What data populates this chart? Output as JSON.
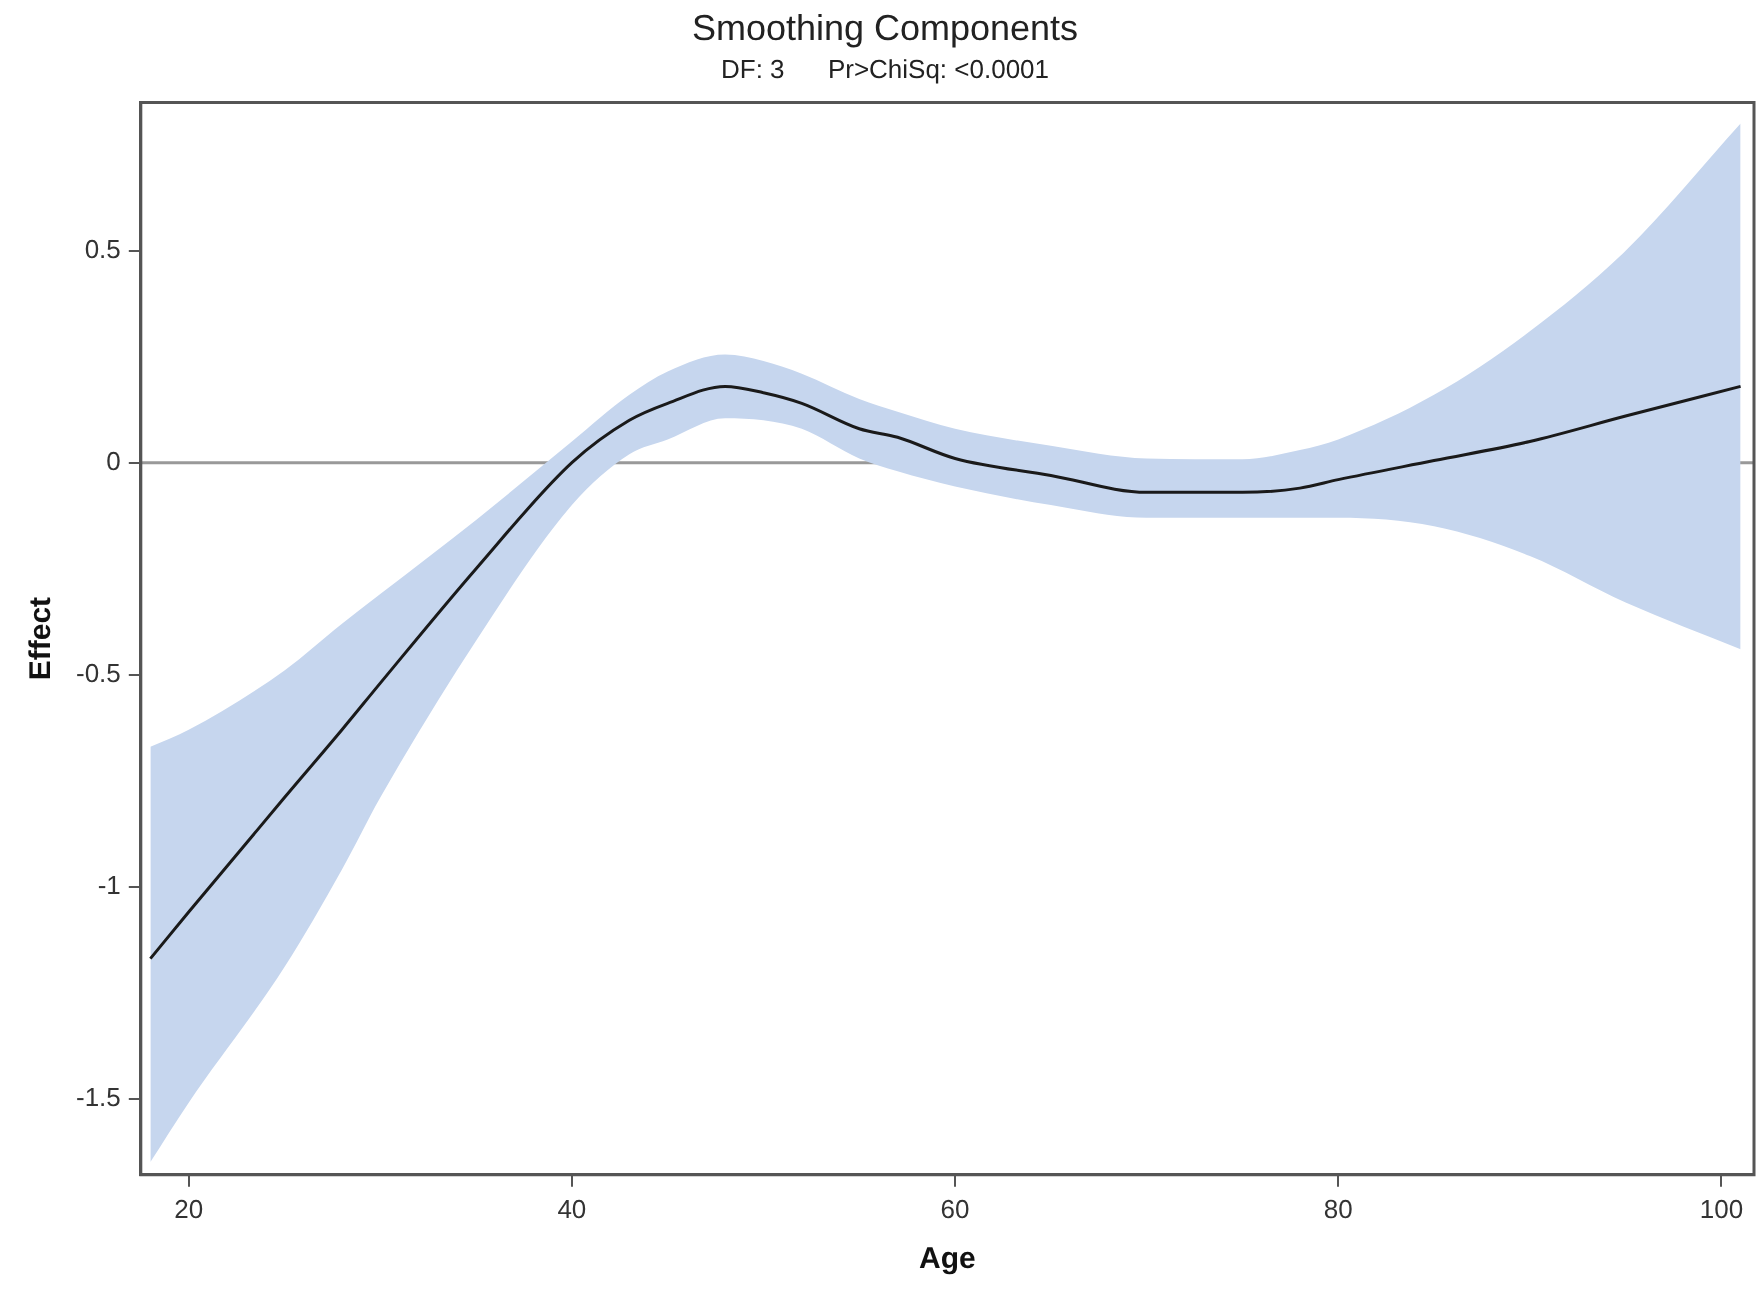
{
  "chart_data": {
    "type": "line",
    "title": "Smoothing Components",
    "subtitle": "DF: 3      Pr>ChiSq: <0.0001",
    "xlabel": "Age",
    "ylabel": "Effect",
    "x": [
      18,
      20,
      25,
      28,
      30,
      35,
      40,
      43,
      45,
      48,
      50,
      52,
      55,
      57,
      60,
      65,
      70,
      75,
      78,
      80,
      85,
      90,
      95,
      101
    ],
    "series": [
      {
        "color": "#1a1a1a",
        "values": [
          -1.17,
          -1.06,
          -0.79,
          -0.63,
          -0.52,
          -0.25,
          0,
          0.1,
          0.14,
          0.18,
          0.165,
          0.14,
          0.08,
          0.06,
          0.01,
          -0.03,
          -0.07,
          -0.07,
          -0.06,
          -0.04,
          0.005,
          0.05,
          0.11,
          0.18
        ],
        "lower": [
          -1.65,
          -1.51,
          -1.19,
          -0.96,
          -0.79,
          -0.42,
          -0.1,
          0.02,
          0.055,
          0.105,
          0.1,
          0.08,
          0.01,
          -0.02,
          -0.056,
          -0.1,
          -0.13,
          -0.13,
          -0.13,
          -0.13,
          -0.15,
          -0.22,
          -0.33,
          -0.44
        ],
        "upper": [
          -0.67,
          -0.63,
          -0.49,
          -0.38,
          -0.31,
          -0.135,
          0.05,
          0.16,
          0.215,
          0.255,
          0.24,
          0.21,
          0.15,
          0.12,
          0.08,
          0.04,
          0.01,
          0.008,
          0.03,
          0.055,
          0.16,
          0.31,
          0.5,
          0.8
        ]
      }
    ],
    "xlim": [
      17.5,
      101.7
    ],
    "ylim": [
      -1.68,
      0.85
    ],
    "xticks": [
      20,
      40,
      60,
      80,
      100
    ],
    "yticks": [
      -1.5,
      -1,
      -0.5,
      0,
      0.5
    ],
    "ref_lines": [
      {
        "axis": "y",
        "value": 0,
        "color": "#999999"
      }
    ],
    "grid": false,
    "legend": false,
    "marker": "none",
    "line_style": "solid"
  }
}
